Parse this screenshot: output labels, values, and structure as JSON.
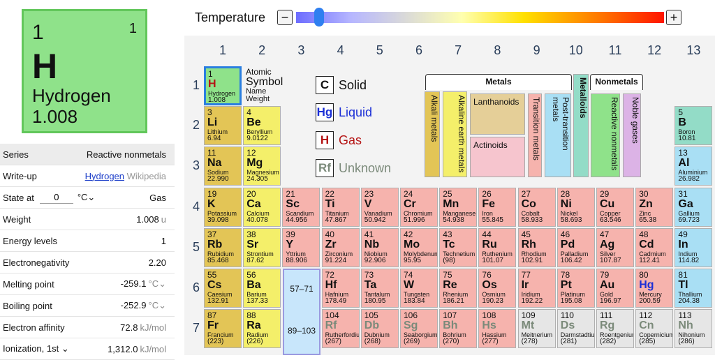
{
  "selected": {
    "number": "1",
    "number2": "1",
    "symbol": "H",
    "name": "Hydrogen",
    "weight": "1.008"
  },
  "temperature": {
    "label": "Temperature",
    "minus": "−",
    "plus": "+",
    "value_fraction": 0.06
  },
  "props": {
    "series_label": "Series",
    "series_value": "Reactive nonmetals",
    "writeup_label": "Write-up",
    "writeup_link": "Hydrogen",
    "writeup_source": "Wikipedia",
    "state_label": "State at",
    "state_value": "0",
    "state_unit": "°C",
    "state_result": "Gas",
    "weight_label": "Weight",
    "weight_value": "1.008",
    "weight_unit": "u",
    "energy_label": "Energy levels",
    "energy_value": "1",
    "eneg_label": "Electronegativity",
    "eneg_value": "2.20",
    "melt_label": "Melting point",
    "melt_value": "-259.1",
    "melt_unit": "°C",
    "boil_label": "Boiling point",
    "boil_value": "-252.9",
    "boil_unit": "°C",
    "eaff_label": "Electron affinity",
    "eaff_value": "72.8",
    "eaff_unit": "kJ/mol",
    "ion_label": "Ionization, 1st",
    "ion_value": "1,312.0",
    "ion_unit": "kJ/mol"
  },
  "columns": [
    "1",
    "2",
    "3",
    "4",
    "5",
    "6",
    "7",
    "8",
    "9",
    "10",
    "11",
    "12",
    "13"
  ],
  "rows": [
    "1",
    "2",
    "3",
    "4",
    "5",
    "6",
    "7"
  ],
  "key": {
    "number": "Atomic",
    "symbol": "Symbol",
    "name": "Name",
    "weight": "Weight"
  },
  "legend": {
    "solid_sym": "C",
    "solid": "Solid",
    "liquid_sym": "Hg",
    "liquid": "Liquid",
    "gas_sym": "H",
    "gas": "Gas",
    "unknown_sym": "Rf",
    "unknown": "Unknown"
  },
  "categories": {
    "metals": "Metals",
    "nonmetals": "Nonmetals",
    "metalloids": "Metalloids",
    "alkali": "Alkali metals",
    "alkearth": "Alkaline earth metals",
    "lanth": "Lanthanoids",
    "actin": "Actinoids",
    "trans": "Transition metals",
    "post": "Post-transition metals",
    "reactive": "Reactive nonmetals",
    "noble": "Noble gases"
  },
  "lanth_range": "57–71",
  "actin_range": "89–103",
  "elements": [
    {
      "n": "1",
      "s": "H",
      "nm": "Hydrogen",
      "w": "1.008",
      "cat": "reactive",
      "col": 1,
      "row": 1,
      "st": "gas",
      "sel": true
    },
    {
      "n": "3",
      "s": "Li",
      "nm": "Lithium",
      "w": "6.94",
      "cat": "alkali",
      "col": 1,
      "row": 2
    },
    {
      "n": "4",
      "s": "Be",
      "nm": "Beryllium",
      "w": "9.0122",
      "cat": "alkearth",
      "col": 2,
      "row": 2
    },
    {
      "n": "5",
      "s": "B",
      "nm": "Boron",
      "w": "10.81",
      "cat": "metalloid",
      "col": 13,
      "row": 2
    },
    {
      "n": "11",
      "s": "Na",
      "nm": "Sodium",
      "w": "22.990",
      "cat": "alkali",
      "col": 1,
      "row": 3
    },
    {
      "n": "12",
      "s": "Mg",
      "nm": "Magnesium",
      "w": "24.305",
      "cat": "alkearth",
      "col": 2,
      "row": 3
    },
    {
      "n": "13",
      "s": "Al",
      "nm": "Aluminium",
      "w": "26.982",
      "cat": "post",
      "col": 13,
      "row": 3
    },
    {
      "n": "19",
      "s": "K",
      "nm": "Potassium",
      "w": "39.098",
      "cat": "alkali",
      "col": 1,
      "row": 4
    },
    {
      "n": "20",
      "s": "Ca",
      "nm": "Calcium",
      "w": "40.078",
      "cat": "alkearth",
      "col": 2,
      "row": 4
    },
    {
      "n": "21",
      "s": "Sc",
      "nm": "Scandium",
      "w": "44.956",
      "cat": "trans",
      "col": 3,
      "row": 4
    },
    {
      "n": "22",
      "s": "Ti",
      "nm": "Titanium",
      "w": "47.867",
      "cat": "trans",
      "col": 4,
      "row": 4
    },
    {
      "n": "23",
      "s": "V",
      "nm": "Vanadium",
      "w": "50.942",
      "cat": "trans",
      "col": 5,
      "row": 4
    },
    {
      "n": "24",
      "s": "Cr",
      "nm": "Chromium",
      "w": "51.996",
      "cat": "trans",
      "col": 6,
      "row": 4
    },
    {
      "n": "25",
      "s": "Mn",
      "nm": "Manganese",
      "w": "54.938",
      "cat": "trans",
      "col": 7,
      "row": 4
    },
    {
      "n": "26",
      "s": "Fe",
      "nm": "Iron",
      "w": "55.845",
      "cat": "trans",
      "col": 8,
      "row": 4
    },
    {
      "n": "27",
      "s": "Co",
      "nm": "Cobalt",
      "w": "58.933",
      "cat": "trans",
      "col": 9,
      "row": 4
    },
    {
      "n": "28",
      "s": "Ni",
      "nm": "Nickel",
      "w": "58.693",
      "cat": "trans",
      "col": 10,
      "row": 4
    },
    {
      "n": "29",
      "s": "Cu",
      "nm": "Copper",
      "w": "63.546",
      "cat": "trans",
      "col": 11,
      "row": 4
    },
    {
      "n": "30",
      "s": "Zn",
      "nm": "Zinc",
      "w": "65.38",
      "cat": "trans",
      "col": 12,
      "row": 4
    },
    {
      "n": "31",
      "s": "Ga",
      "nm": "Gallium",
      "w": "69.723",
      "cat": "post",
      "col": 13,
      "row": 4
    },
    {
      "n": "37",
      "s": "Rb",
      "nm": "Rubidium",
      "w": "85.468",
      "cat": "alkali",
      "col": 1,
      "row": 5
    },
    {
      "n": "38",
      "s": "Sr",
      "nm": "Strontium",
      "w": "87.62",
      "cat": "alkearth",
      "col": 2,
      "row": 5
    },
    {
      "n": "39",
      "s": "Y",
      "nm": "Yttrium",
      "w": "88.906",
      "cat": "trans",
      "col": 3,
      "row": 5
    },
    {
      "n": "40",
      "s": "Zr",
      "nm": "Zirconium",
      "w": "91.224",
      "cat": "trans",
      "col": 4,
      "row": 5
    },
    {
      "n": "41",
      "s": "Nb",
      "nm": "Niobium",
      "w": "92.906",
      "cat": "trans",
      "col": 5,
      "row": 5
    },
    {
      "n": "42",
      "s": "Mo",
      "nm": "Molybdenum",
      "w": "95.95",
      "cat": "trans",
      "col": 6,
      "row": 5
    },
    {
      "n": "43",
      "s": "Tc",
      "nm": "Technetium",
      "w": "(98)",
      "cat": "trans",
      "col": 7,
      "row": 5
    },
    {
      "n": "44",
      "s": "Ru",
      "nm": "Ruthenium",
      "w": "101.07",
      "cat": "trans",
      "col": 8,
      "row": 5
    },
    {
      "n": "45",
      "s": "Rh",
      "nm": "Rhodium",
      "w": "102.91",
      "cat": "trans",
      "col": 9,
      "row": 5
    },
    {
      "n": "46",
      "s": "Pd",
      "nm": "Palladium",
      "w": "106.42",
      "cat": "trans",
      "col": 10,
      "row": 5
    },
    {
      "n": "47",
      "s": "Ag",
      "nm": "Silver",
      "w": "107.87",
      "cat": "trans",
      "col": 11,
      "row": 5
    },
    {
      "n": "48",
      "s": "Cd",
      "nm": "Cadmium",
      "w": "112.41",
      "cat": "trans",
      "col": 12,
      "row": 5
    },
    {
      "n": "49",
      "s": "In",
      "nm": "Indium",
      "w": "114.82",
      "cat": "post",
      "col": 13,
      "row": 5
    },
    {
      "n": "55",
      "s": "Cs",
      "nm": "Caesium",
      "w": "132.91",
      "cat": "alkali",
      "col": 1,
      "row": 6
    },
    {
      "n": "56",
      "s": "Ba",
      "nm": "Barium",
      "w": "137.33",
      "cat": "alkearth",
      "col": 2,
      "row": 6
    },
    {
      "n": "72",
      "s": "Hf",
      "nm": "Hafnium",
      "w": "178.49",
      "cat": "trans",
      "col": 4,
      "row": 6
    },
    {
      "n": "73",
      "s": "Ta",
      "nm": "Tantalum",
      "w": "180.95",
      "cat": "trans",
      "col": 5,
      "row": 6
    },
    {
      "n": "74",
      "s": "W",
      "nm": "Tungsten",
      "w": "183.84",
      "cat": "trans",
      "col": 6,
      "row": 6
    },
    {
      "n": "75",
      "s": "Re",
      "nm": "Rhenium",
      "w": "186.21",
      "cat": "trans",
      "col": 7,
      "row": 6
    },
    {
      "n": "76",
      "s": "Os",
      "nm": "Osmium",
      "w": "190.23",
      "cat": "trans",
      "col": 8,
      "row": 6
    },
    {
      "n": "77",
      "s": "Ir",
      "nm": "Iridium",
      "w": "192.22",
      "cat": "trans",
      "col": 9,
      "row": 6
    },
    {
      "n": "78",
      "s": "Pt",
      "nm": "Platinum",
      "w": "195.08",
      "cat": "trans",
      "col": 10,
      "row": 6
    },
    {
      "n": "79",
      "s": "Au",
      "nm": "Gold",
      "w": "196.97",
      "cat": "trans",
      "col": 11,
      "row": 6
    },
    {
      "n": "80",
      "s": "Hg",
      "nm": "Mercury",
      "w": "200.59",
      "cat": "trans",
      "col": 12,
      "row": 6,
      "st": "liq"
    },
    {
      "n": "81",
      "s": "Tl",
      "nm": "Thallium",
      "w": "204.38",
      "cat": "post",
      "col": 13,
      "row": 6
    },
    {
      "n": "87",
      "s": "Fr",
      "nm": "Francium",
      "w": "(223)",
      "cat": "alkali",
      "col": 1,
      "row": 7
    },
    {
      "n": "88",
      "s": "Ra",
      "nm": "Radium",
      "w": "(226)",
      "cat": "alkearth",
      "col": 2,
      "row": 7
    },
    {
      "n": "104",
      "s": "Rf",
      "nm": "Rutherfordium",
      "w": "(267)",
      "cat": "trans",
      "col": 4,
      "row": 7,
      "st": "unk"
    },
    {
      "n": "105",
      "s": "Db",
      "nm": "Dubnium",
      "w": "(268)",
      "cat": "trans",
      "col": 5,
      "row": 7,
      "st": "unk"
    },
    {
      "n": "106",
      "s": "Sg",
      "nm": "Seaborgium",
      "w": "(269)",
      "cat": "trans",
      "col": 6,
      "row": 7,
      "st": "unk"
    },
    {
      "n": "107",
      "s": "Bh",
      "nm": "Bohrium",
      "w": "(270)",
      "cat": "trans",
      "col": 7,
      "row": 7,
      "st": "unk"
    },
    {
      "n": "108",
      "s": "Hs",
      "nm": "Hassium",
      "w": "(277)",
      "cat": "trans",
      "col": 8,
      "row": 7,
      "st": "unk"
    },
    {
      "n": "109",
      "s": "Mt",
      "nm": "Meitnerium",
      "w": "(278)",
      "cat": "unknown",
      "col": 9,
      "row": 7,
      "st": "unk"
    },
    {
      "n": "110",
      "s": "Ds",
      "nm": "Darmstadtium",
      "w": "(281)",
      "cat": "unknown",
      "col": 10,
      "row": 7,
      "st": "unk"
    },
    {
      "n": "111",
      "s": "Rg",
      "nm": "Roentgenium",
      "w": "(282)",
      "cat": "unknown",
      "col": 11,
      "row": 7,
      "st": "unk"
    },
    {
      "n": "112",
      "s": "Cn",
      "nm": "Copernicium",
      "w": "(285)",
      "cat": "unknown",
      "col": 12,
      "row": 7,
      "st": "unk"
    },
    {
      "n": "113",
      "s": "Nh",
      "nm": "Nihonium",
      "w": "(286)",
      "cat": "unknown",
      "col": 13,
      "row": 7,
      "st": "unk"
    }
  ]
}
